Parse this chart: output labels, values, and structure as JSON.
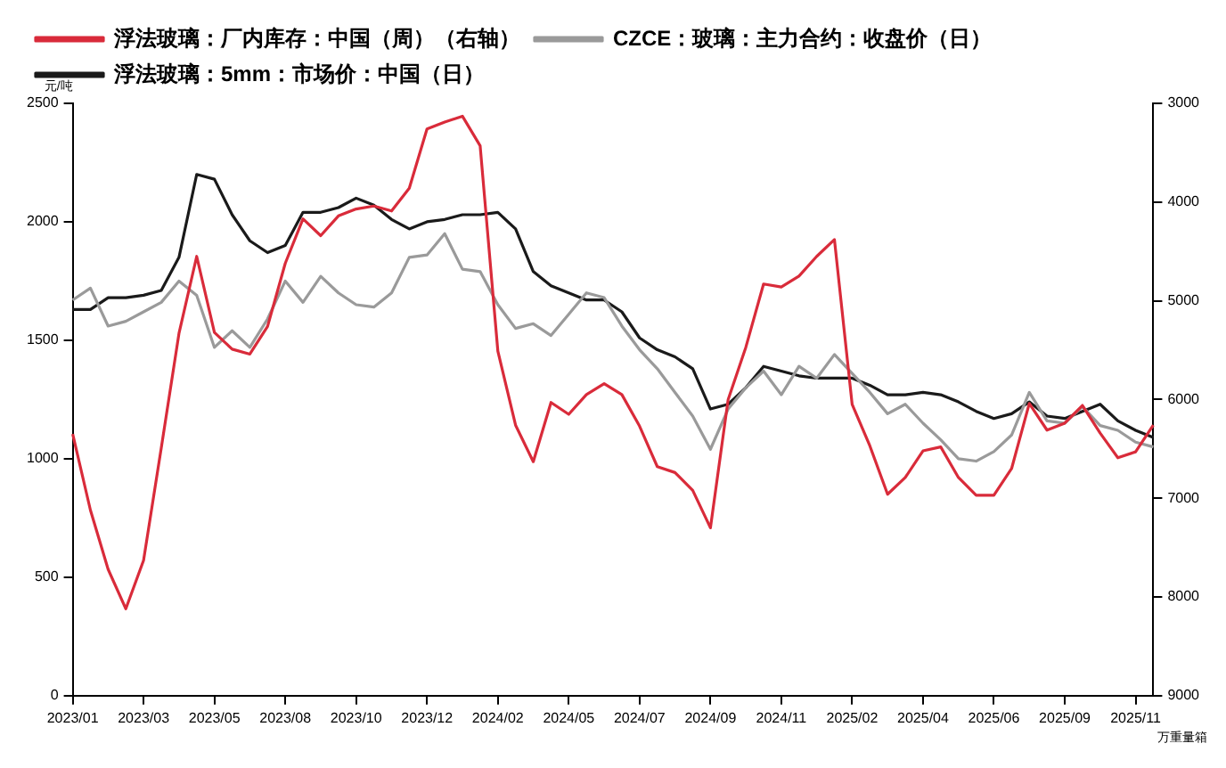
{
  "chart_data": {
    "type": "line",
    "ylabel": "元/吨",
    "y2label": "万重量箱",
    "legend": "top",
    "grid": false,
    "marker": "none",
    "line_style": "solid",
    "categories": [
      "2023/01",
      null,
      null,
      null,
      "2023/03",
      null,
      null,
      null,
      "2023/05",
      null,
      null,
      null,
      "2023/08",
      null,
      null,
      null,
      "2023/10",
      null,
      null,
      null,
      "2023/12",
      null,
      null,
      null,
      "2024/02",
      null,
      null,
      null,
      "2024/05",
      null,
      null,
      null,
      "2024/07",
      null,
      null,
      null,
      "2024/09",
      null,
      null,
      null,
      "2024/11",
      null,
      null,
      null,
      "2025/02",
      null,
      null,
      null,
      "2025/04",
      null,
      null,
      null,
      "2025/06",
      null,
      null,
      null,
      "2025/09",
      null,
      null,
      null,
      "2025/11",
      null
    ],
    "ylim": [
      0,
      2500
    ],
    "yticks": [
      0,
      500,
      1000,
      1500,
      2000,
      2500
    ],
    "y2lim": [
      9000,
      3000
    ],
    "y2ticks": [
      3000,
      4000,
      5000,
      6000,
      7000,
      8000,
      9000
    ],
    "series": [
      {
        "name": "浮法玻璃：厂内库存：中国（周）（右轴）",
        "color": "#d92b3a",
        "axis": "y2",
        "values": [
          6350,
          7120,
          7720,
          8120,
          7630,
          6490,
          5330,
          4550,
          5320,
          5490,
          5540,
          5260,
          4620,
          4170,
          4340,
          4140,
          4070,
          4040,
          4090,
          3860,
          3260,
          3190,
          3130,
          3430,
          5510,
          6260,
          6630,
          6030,
          6150,
          5950,
          5840,
          5950,
          6270,
          6680,
          6740,
          6920,
          7300,
          6000,
          5470,
          4830,
          4860,
          4750,
          4550,
          4380,
          6050,
          6470,
          6960,
          6790,
          6520,
          6480,
          6790,
          6970,
          6970,
          6700,
          6040,
          6310,
          6240,
          6060,
          6340,
          6590,
          6530,
          6260
        ]
      },
      {
        "name": "CZCE：玻璃：主力合约：收盘价（日）",
        "color": "#9a9a9a",
        "values": [
          1670,
          1720,
          1560,
          1580,
          1620,
          1660,
          1750,
          1690,
          1470,
          1540,
          1470,
          1590,
          1750,
          1660,
          1770,
          1700,
          1650,
          1640,
          1700,
          1850,
          1860,
          1950,
          1800,
          1790,
          1650,
          1550,
          1570,
          1520,
          1610,
          1700,
          1680,
          1560,
          1460,
          1380,
          1280,
          1180,
          1040,
          1210,
          1300,
          1370,
          1270,
          1390,
          1340,
          1440,
          1360,
          1280,
          1190,
          1230,
          1150,
          1080,
          1000,
          990,
          1030,
          1100,
          1280,
          1160,
          1150,
          1220,
          1140,
          1120,
          1070,
          1050
        ]
      },
      {
        "name": "浮法玻璃：5mm：市场价：中国（日）",
        "color": "#1a1a1a",
        "values": [
          1630,
          1630,
          1680,
          1680,
          1690,
          1710,
          1850,
          2200,
          2180,
          2030,
          1920,
          1870,
          1900,
          2040,
          2040,
          2060,
          2100,
          2070,
          2010,
          1970,
          2000,
          2010,
          2030,
          2030,
          2040,
          1970,
          1790,
          1730,
          1700,
          1670,
          1670,
          1620,
          1510,
          1460,
          1430,
          1380,
          1210,
          1230,
          1300,
          1390,
          1370,
          1350,
          1340,
          1340,
          1340,
          1310,
          1270,
          1270,
          1280,
          1270,
          1240,
          1200,
          1170,
          1190,
          1240,
          1180,
          1170,
          1200,
          1230,
          1160,
          1120,
          1090
        ]
      }
    ]
  }
}
